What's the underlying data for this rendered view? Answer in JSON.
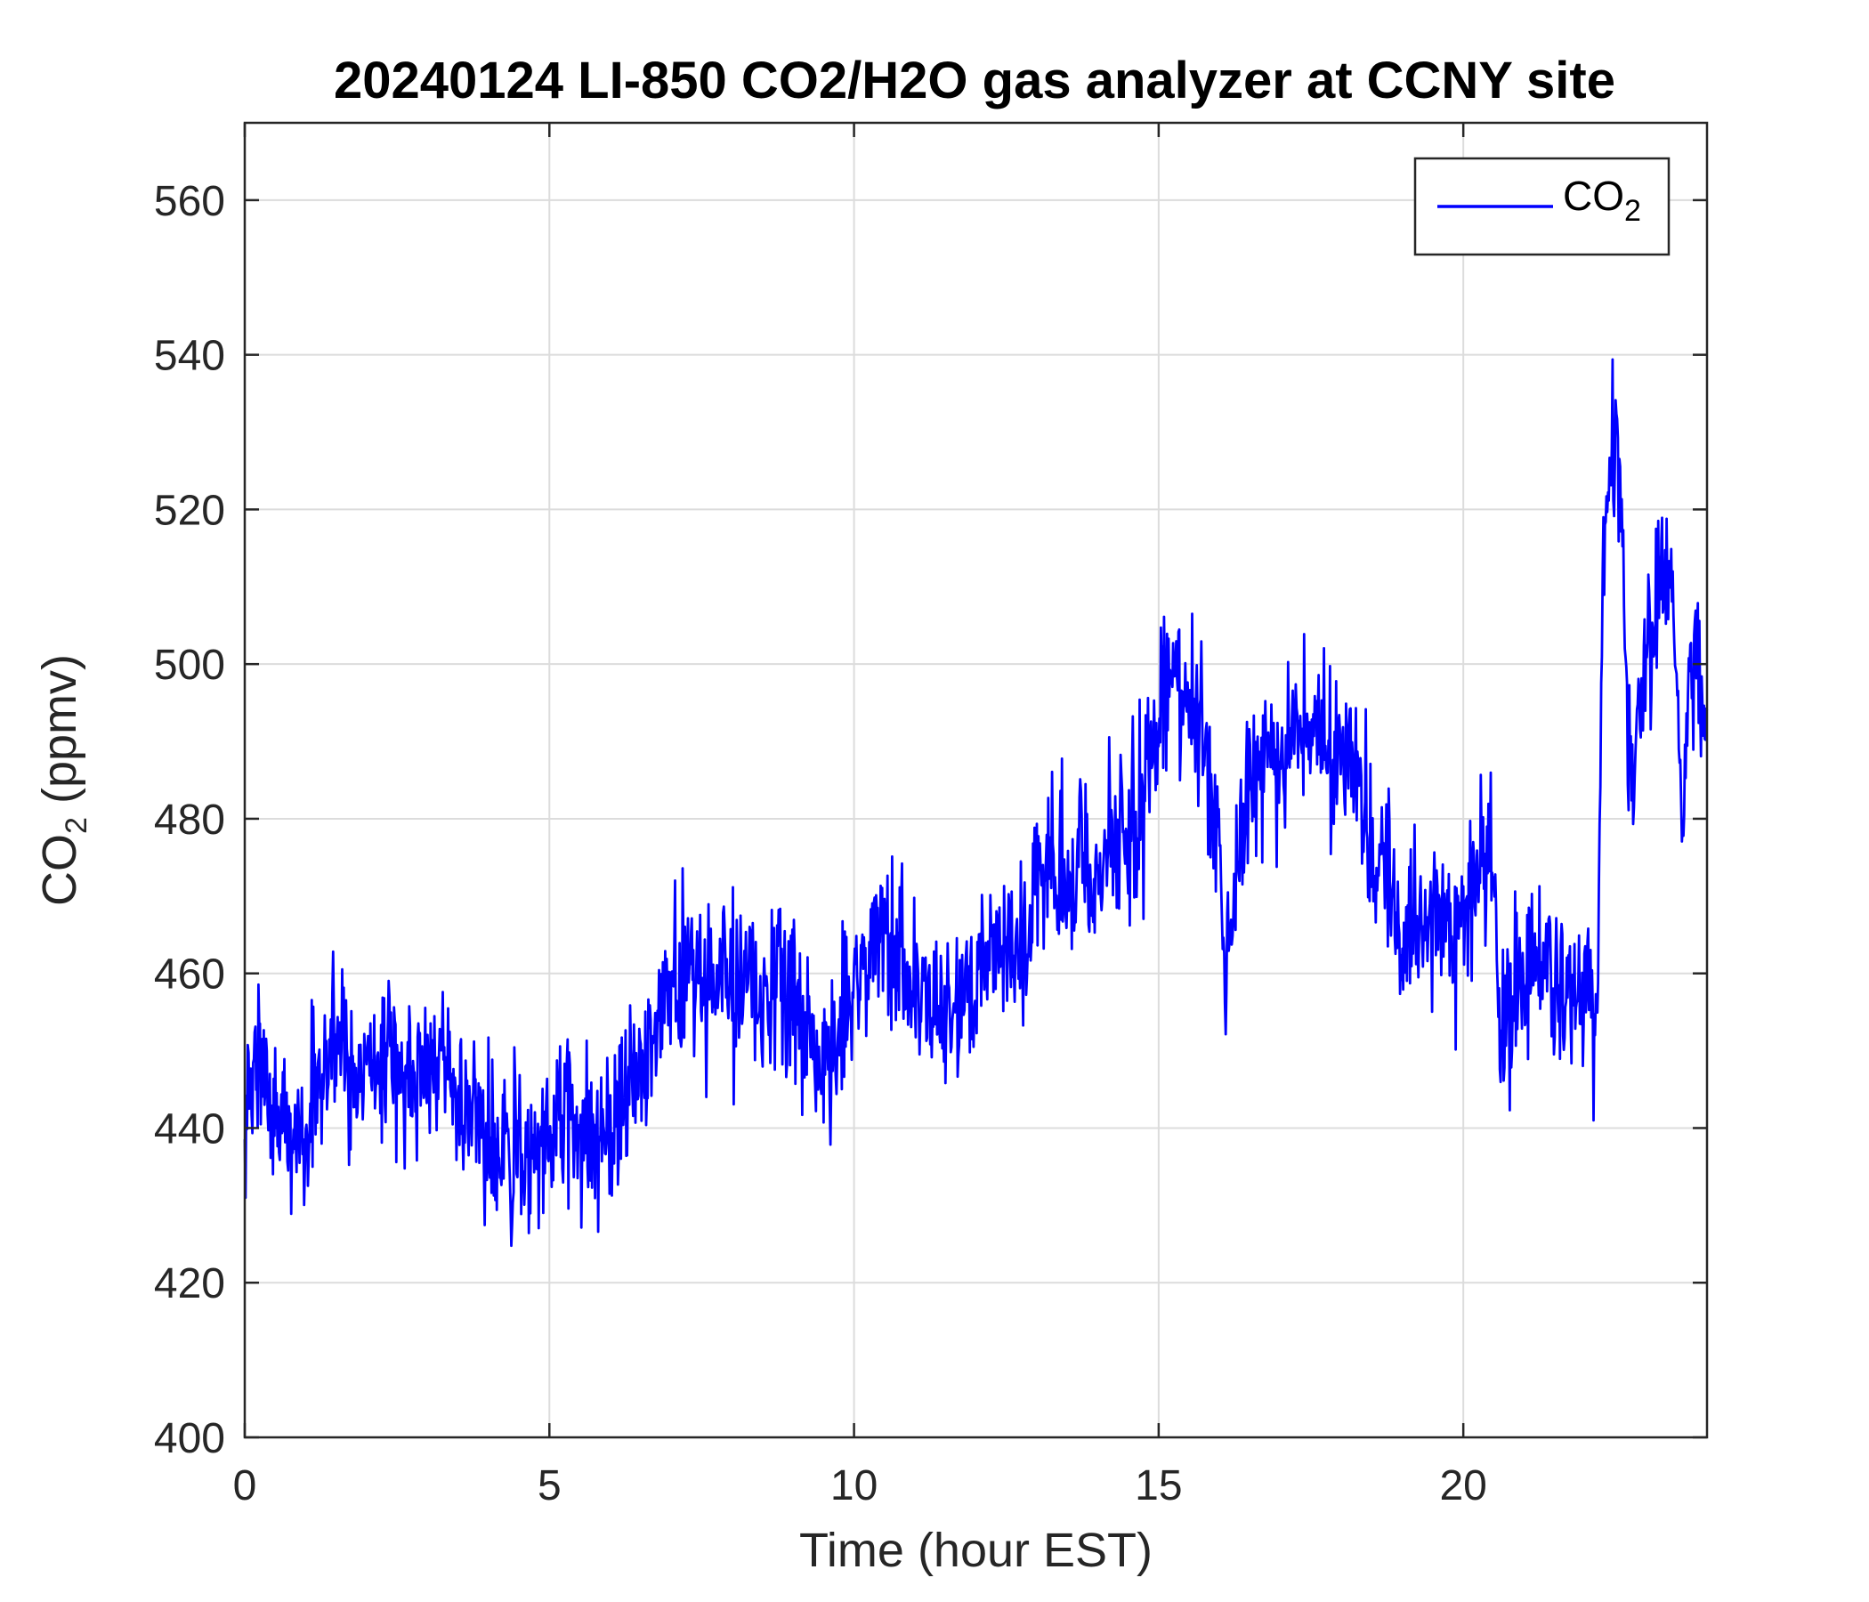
{
  "chart_data": {
    "type": "line",
    "title": "20240124 LI-850 CO2/H2O gas analyzer at CCNY site",
    "xlabel": "Time (hour EST)",
    "ylabel": {
      "main": "CO",
      "sub": "2",
      "rest": " (ppmv)"
    },
    "xlim": [
      0,
      24
    ],
    "ylim": [
      400,
      570
    ],
    "xticks": [
      0,
      5,
      10,
      15,
      20
    ],
    "xtick_labels": [
      "0",
      "5",
      "10",
      "15",
      "20"
    ],
    "yticks": [
      400,
      420,
      440,
      460,
      480,
      500,
      520,
      540,
      560
    ],
    "ytick_labels": [
      "400",
      "420",
      "440",
      "460",
      "480",
      "500",
      "520",
      "540",
      "560"
    ],
    "grid": true,
    "legend_position": "top-right",
    "legend": {
      "main": "CO",
      "sub": "2"
    },
    "series": [
      {
        "color": "#0000ff",
        "x": [
          0,
          0.25,
          0.5,
          0.75,
          1,
          1.25,
          1.5,
          1.75,
          2,
          2.25,
          2.5,
          2.75,
          3,
          3.25,
          3.5,
          3.75,
          4,
          4.25,
          4.5,
          4.75,
          5,
          5.25,
          5.5,
          5.75,
          6,
          6.25,
          6.5,
          6.75,
          7,
          7.25,
          7.5,
          7.75,
          8,
          8.25,
          8.5,
          8.75,
          9,
          9.25,
          9.5,
          9.75,
          10,
          10.25,
          10.5,
          10.75,
          11,
          11.25,
          11.5,
          11.75,
          12,
          12.25,
          12.5,
          12.75,
          13,
          13.25,
          13.5,
          13.75,
          14,
          14.25,
          14.5,
          14.75,
          15,
          15.25,
          15.5,
          15.75,
          16,
          16.1,
          16.25,
          16.5,
          16.75,
          17,
          17.25,
          17.5,
          17.75,
          18,
          18.25,
          18.5,
          18.75,
          19,
          19.25,
          19.5,
          19.75,
          20,
          20.25,
          20.5,
          20.6,
          20.75,
          21,
          21.25,
          21.5,
          21.75,
          22,
          22.2,
          22.3,
          22.4,
          22.5,
          22.6,
          22.7,
          22.8,
          22.9,
          23,
          23.2,
          23.4,
          23.6,
          23.75,
          23.85,
          24
        ],
        "y": [
          441,
          449,
          443,
          439,
          440,
          448,
          452,
          447,
          449,
          448,
          449,
          447,
          446,
          449,
          444,
          442,
          440,
          438,
          437,
          436,
          440,
          443,
          440,
          437,
          440,
          444,
          449,
          454,
          458,
          462,
          456,
          463,
          461,
          459,
          455,
          460,
          456,
          452,
          448,
          451,
          458,
          463,
          467,
          462,
          460,
          455,
          455,
          458,
          461,
          463,
          462,
          465,
          470,
          474,
          471,
          476,
          471,
          477,
          478,
          482,
          494,
          498,
          495,
          490,
          478,
          458,
          472,
          485,
          489,
          488,
          491,
          492,
          489,
          487,
          488,
          476,
          474,
          466,
          465,
          468,
          462,
          466,
          474,
          475,
          450,
          455,
          460,
          461,
          458,
          457,
          458,
          455,
          518,
          525,
          530,
          520,
          490,
          486,
          495,
          503,
          512,
          515,
          480,
          505,
          498,
          494
        ]
      }
    ]
  }
}
